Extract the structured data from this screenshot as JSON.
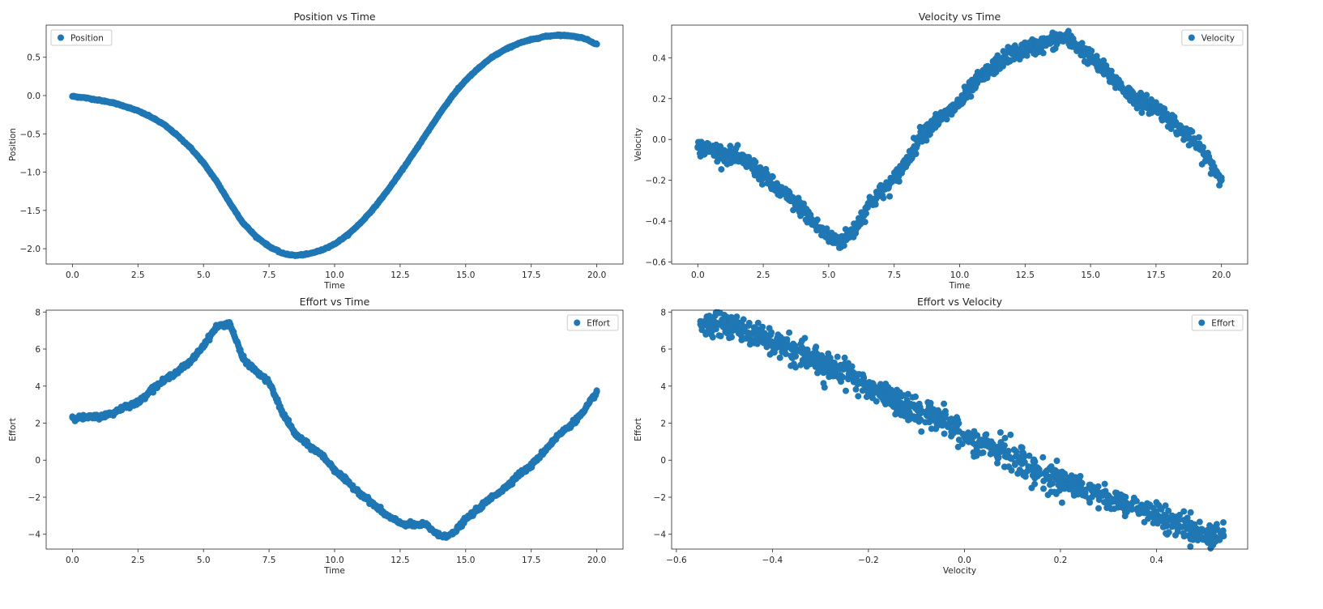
{
  "colors": {
    "marker": "#1f77b4",
    "axis": "#262626",
    "legend_border": "#cccccc"
  },
  "chart_data": [
    {
      "type": "scatter",
      "title": "Position vs Time",
      "xlabel": "Time",
      "ylabel": "Position",
      "xlim": [
        -1.0,
        21.0
      ],
      "ylim": [
        -2.2,
        0.92
      ],
      "xticks": [
        0.0,
        2.5,
        5.0,
        7.5,
        10.0,
        12.5,
        15.0,
        17.5,
        20.0
      ],
      "xtick_labels": [
        "0.0",
        "2.5",
        "5.0",
        "7.5",
        "10.0",
        "12.5",
        "15.0",
        "17.5",
        "20.0"
      ],
      "yticks": [
        -2.0,
        -1.5,
        -1.0,
        -0.5,
        0.0,
        0.5
      ],
      "ytick_labels": [
        "−2.0",
        "−1.5",
        "−1.0",
        "−0.5",
        "0.0",
        "0.5"
      ],
      "legend": {
        "label": "Position",
        "position": "upper-left"
      },
      "series": [
        {
          "name": "Position",
          "x": [
            0,
            0.5,
            1,
            1.5,
            2,
            2.5,
            3,
            3.5,
            4,
            4.5,
            5,
            5.5,
            6,
            6.5,
            7,
            7.5,
            8,
            8.5,
            9,
            9.5,
            10,
            10.5,
            11,
            11.5,
            12,
            12.5,
            13,
            13.5,
            14,
            14.5,
            15,
            15.5,
            16,
            16.5,
            17,
            17.5,
            18,
            18.5,
            19,
            19.5,
            20
          ],
          "y": [
            -0.01,
            -0.03,
            -0.06,
            -0.09,
            -0.14,
            -0.2,
            -0.28,
            -0.38,
            -0.52,
            -0.68,
            -0.88,
            -1.12,
            -1.4,
            -1.66,
            -1.84,
            -1.97,
            -2.06,
            -2.09,
            -2.07,
            -2.02,
            -1.94,
            -1.82,
            -1.66,
            -1.47,
            -1.25,
            -1.01,
            -0.76,
            -0.5,
            -0.24,
            0.0,
            0.2,
            0.36,
            0.5,
            0.6,
            0.68,
            0.73,
            0.77,
            0.79,
            0.78,
            0.75,
            0.67
          ]
        }
      ]
    },
    {
      "type": "scatter",
      "title": "Velocity vs Time",
      "xlabel": "Time",
      "ylabel": "Velocity",
      "xlim": [
        -1.0,
        21.0
      ],
      "ylim": [
        -0.61,
        0.56
      ],
      "xticks": [
        0.0,
        2.5,
        5.0,
        7.5,
        10.0,
        12.5,
        15.0,
        17.5,
        20.0
      ],
      "xtick_labels": [
        "0.0",
        "2.5",
        "5.0",
        "7.5",
        "10.0",
        "12.5",
        "15.0",
        "17.5",
        "20.0"
      ],
      "yticks": [
        -0.6,
        -0.4,
        -0.2,
        0.0,
        0.2,
        0.4
      ],
      "ytick_labels": [
        "−0.6",
        "−0.4",
        "−0.2",
        "0.0",
        "0.2",
        "0.4"
      ],
      "legend": {
        "label": "Velocity",
        "position": "upper-right"
      },
      "series": [
        {
          "name": "Velocity",
          "x": [
            0,
            0.5,
            1,
            1.5,
            2,
            2.5,
            3,
            3.5,
            4,
            4.5,
            5,
            5.5,
            6,
            6.5,
            7,
            7.5,
            8,
            8.5,
            9,
            9.5,
            10,
            10.5,
            11,
            11.5,
            12,
            12.5,
            13,
            13.5,
            14,
            14.5,
            15,
            15.5,
            16,
            16.5,
            17,
            17.5,
            18,
            18.5,
            19,
            19.5,
            20
          ],
          "y": [
            -0.04,
            -0.05,
            -0.07,
            -0.09,
            -0.12,
            -0.18,
            -0.24,
            -0.29,
            -0.34,
            -0.42,
            -0.48,
            -0.5,
            -0.44,
            -0.32,
            -0.26,
            -0.2,
            -0.1,
            0.02,
            0.08,
            0.12,
            0.18,
            0.26,
            0.32,
            0.38,
            0.42,
            0.44,
            0.46,
            0.48,
            0.5,
            0.46,
            0.4,
            0.34,
            0.28,
            0.22,
            0.18,
            0.16,
            0.1,
            0.04,
            -0.02,
            -0.1,
            -0.2
          ]
        }
      ]
    },
    {
      "type": "scatter",
      "title": "Effort vs Time",
      "xlabel": "Time",
      "ylabel": "Effort",
      "xlim": [
        -1.0,
        21.0
      ],
      "ylim": [
        -4.8,
        8.1
      ],
      "xticks": [
        0.0,
        2.5,
        5.0,
        7.5,
        10.0,
        12.5,
        15.0,
        17.5,
        20.0
      ],
      "xtick_labels": [
        "0.0",
        "2.5",
        "5.0",
        "7.5",
        "10.0",
        "12.5",
        "15.0",
        "17.5",
        "20.0"
      ],
      "yticks": [
        -4,
        -2,
        0,
        2,
        4,
        6,
        8
      ],
      "ytick_labels": [
        "−4",
        "−2",
        "0",
        "2",
        "4",
        "6",
        "8"
      ],
      "legend": {
        "label": "Effort",
        "position": "upper-right"
      },
      "series": [
        {
          "name": "Effort",
          "x": [
            0,
            0.5,
            1,
            1.5,
            2,
            2.5,
            3,
            3.5,
            4,
            4.5,
            5,
            5.5,
            6,
            6.5,
            7,
            7.5,
            8,
            8.5,
            9,
            9.5,
            10,
            10.5,
            11,
            11.5,
            12,
            12.5,
            13,
            13.5,
            14,
            14.5,
            15,
            15.5,
            16,
            16.5,
            17,
            17.5,
            18,
            18.5,
            19,
            19.5,
            20
          ],
          "y": [
            2.3,
            2.3,
            2.35,
            2.5,
            2.9,
            3.1,
            3.8,
            4.3,
            4.8,
            5.3,
            6.2,
            7.2,
            7.4,
            5.5,
            4.8,
            4.2,
            2.6,
            1.4,
            0.8,
            0.3,
            -0.5,
            -1.2,
            -1.8,
            -2.4,
            -3.0,
            -3.4,
            -3.5,
            -3.5,
            -4.1,
            -4.0,
            -3.2,
            -2.6,
            -2.0,
            -1.5,
            -0.8,
            -0.3,
            0.5,
            1.3,
            1.9,
            2.6,
            3.7
          ]
        }
      ]
    },
    {
      "type": "scatter",
      "title": "Effort vs Velocity",
      "xlabel": "Velocity",
      "ylabel": "Effort",
      "xlim": [
        -0.61,
        0.59
      ],
      "ylim": [
        -4.8,
        8.1
      ],
      "xticks": [
        -0.6,
        -0.4,
        -0.2,
        0.0,
        0.2,
        0.4
      ],
      "xtick_labels": [
        "−0.6",
        "−0.4",
        "−0.2",
        "0.0",
        "0.2",
        "0.4"
      ],
      "yticks": [
        -4,
        -2,
        0,
        2,
        4,
        6,
        8
      ],
      "ytick_labels": [
        "−4",
        "−2",
        "0",
        "2",
        "4",
        "6",
        "8"
      ],
      "legend": {
        "label": "Effort",
        "position": "upper-right"
      },
      "series": [
        {
          "name": "Effort",
          "x": [
            -0.55,
            -0.5,
            -0.47,
            -0.44,
            -0.4,
            -0.36,
            -0.33,
            -0.3,
            -0.27,
            -0.24,
            -0.21,
            -0.18,
            -0.15,
            -0.12,
            -0.09,
            -0.06,
            -0.03,
            0.0,
            0.03,
            0.06,
            0.09,
            0.12,
            0.15,
            0.18,
            0.21,
            0.24,
            0.27,
            0.3,
            0.33,
            0.36,
            0.39,
            0.42,
            0.45,
            0.48,
            0.51,
            0.54,
            -0.49,
            -0.28,
            -0.1,
            0.02,
            0.14,
            0.3,
            0.44
          ],
          "y": [
            7.5,
            7.3,
            7.2,
            6.9,
            6.3,
            6.0,
            5.6,
            5.2,
            4.9,
            4.6,
            4.1,
            3.7,
            3.3,
            2.9,
            2.6,
            2.3,
            2.0,
            1.3,
            0.9,
            0.6,
            0.2,
            -0.2,
            -0.5,
            -0.9,
            -1.2,
            -1.5,
            -1.8,
            -2.0,
            -2.3,
            -2.6,
            -2.9,
            -3.2,
            -3.6,
            -3.8,
            -4.0,
            -4.1,
            6.6,
            5.0,
            2.3,
            0.2,
            -1.5,
            -2.4,
            -3.2
          ]
        }
      ]
    }
  ]
}
